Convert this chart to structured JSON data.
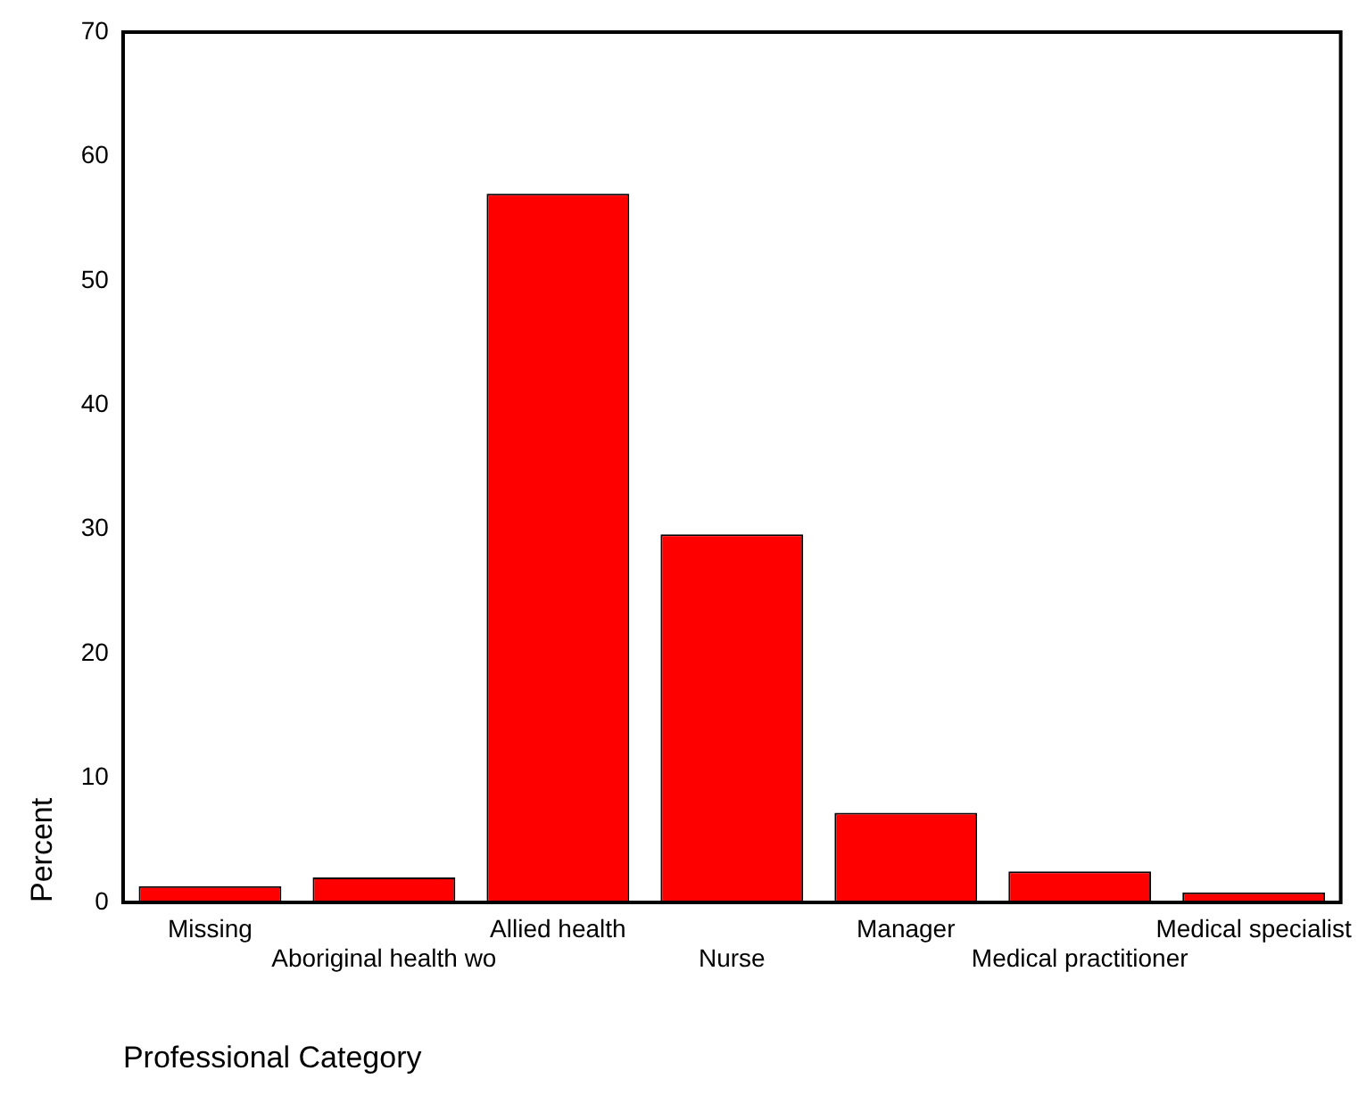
{
  "chart_data": {
    "type": "bar",
    "xlabel": "Professional Category",
    "ylabel": "Percent",
    "categories": [
      "Missing",
      "Aboriginal health wo",
      "Allied health",
      "Nurse",
      "Manager",
      "Medical practitioner",
      "Medical specialist"
    ],
    "values": [
      1.3,
      2.0,
      57.0,
      29.6,
      7.2,
      2.5,
      0.8
    ],
    "color": "#ff0000",
    "ylim": [
      0,
      70
    ],
    "yticks": [
      0,
      10,
      20,
      30,
      40,
      50,
      60,
      70
    ],
    "grid": false,
    "legend": false
  }
}
